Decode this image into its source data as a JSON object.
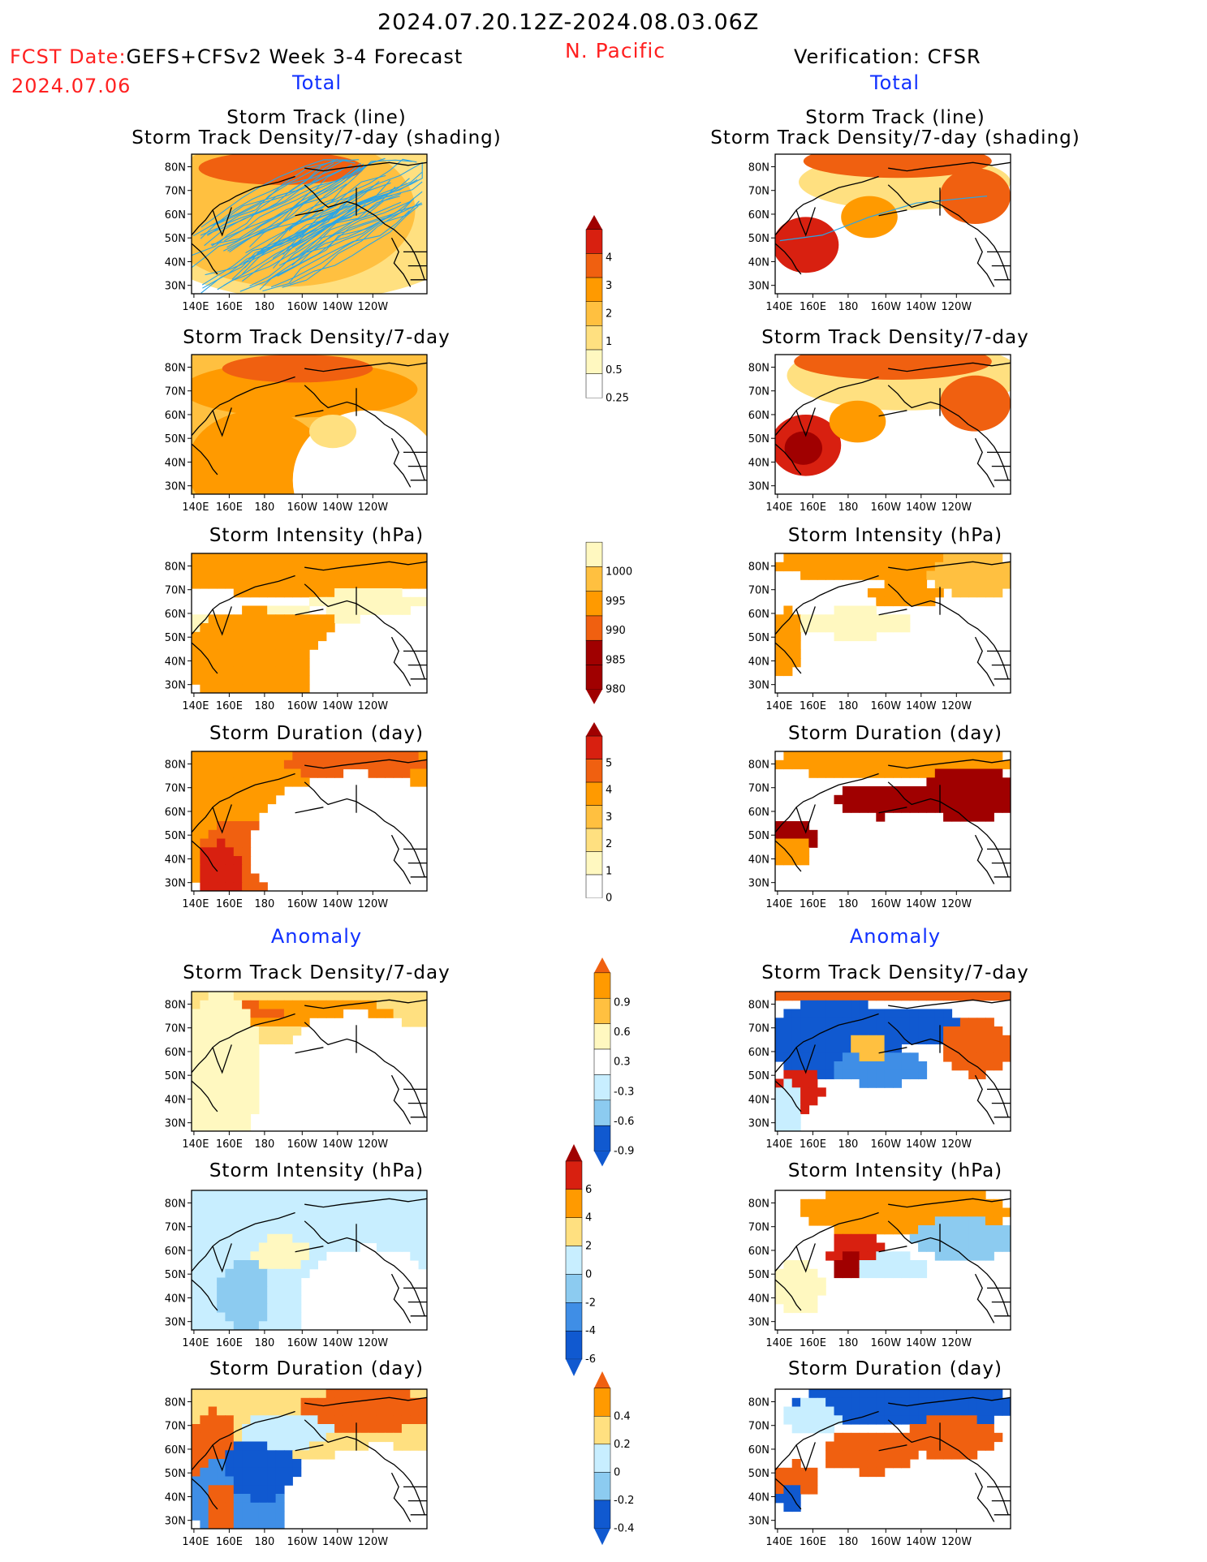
{
  "header": {
    "period": "2024.07.20.12Z-2024.08.03.06Z",
    "fcst_label": "FCST Date:",
    "fcst_model": "GEFS+CFSv2 Week 3-4 Forecast",
    "fcst_date": "2024.07.06",
    "region": "N. Pacific",
    "verification": "Verification: CFSR"
  },
  "columns": {
    "left_total": "Total",
    "right_total": "Total",
    "left_anomaly": "Anomaly",
    "right_anomaly": "Anomaly"
  },
  "panel_titles": {
    "track_line": "Storm Track (line)",
    "track_density_shading": "Storm Track Density/7-day (shading)",
    "density": "Storm Track Density/7-day",
    "intensity": "Storm Intensity (hPa)",
    "duration": "Storm Duration (day)"
  },
  "axes": {
    "lat_labels": [
      "80N",
      "70N",
      "60N",
      "50N",
      "40N",
      "30N"
    ],
    "lon_labels": [
      "140E",
      "160E",
      "180",
      "160W",
      "140W",
      "120W"
    ]
  },
  "colorbars": [
    {
      "id": "density_total",
      "labels": [
        "4",
        "3",
        "2",
        "1",
        "0.5",
        "0.25"
      ]
    },
    {
      "id": "intensity_total",
      "labels": [
        "1000",
        "995",
        "990",
        "985",
        "980"
      ]
    },
    {
      "id": "duration_total",
      "labels": [
        "5",
        "4",
        "3",
        "2",
        "1",
        "0"
      ]
    },
    {
      "id": "density_anom",
      "labels": [
        "0.9",
        "0.6",
        "0.3",
        "-0.3",
        "-0.6",
        "-0.9"
      ]
    },
    {
      "id": "intensity_anom",
      "labels": [
        "6",
        "4",
        "2",
        "0",
        "-2",
        "-4",
        "-6"
      ]
    },
    {
      "id": "duration_anom",
      "labels": [
        "0.4",
        "0.2",
        "0",
        "-0.2",
        "-0.4"
      ]
    }
  ],
  "colors": {
    "warm": [
      "#fff8c0",
      "#ffe080",
      "#ffc040",
      "#ff9a00",
      "#f06010",
      "#d82010",
      "#a00000"
    ],
    "cool": [
      "#c8eeff",
      "#8ccbf0",
      "#3f8ee6",
      "#1059d0"
    ],
    "track": "#2aa5e6",
    "title_red": "#ff2020",
    "title_blue": "#1030ff"
  }
}
